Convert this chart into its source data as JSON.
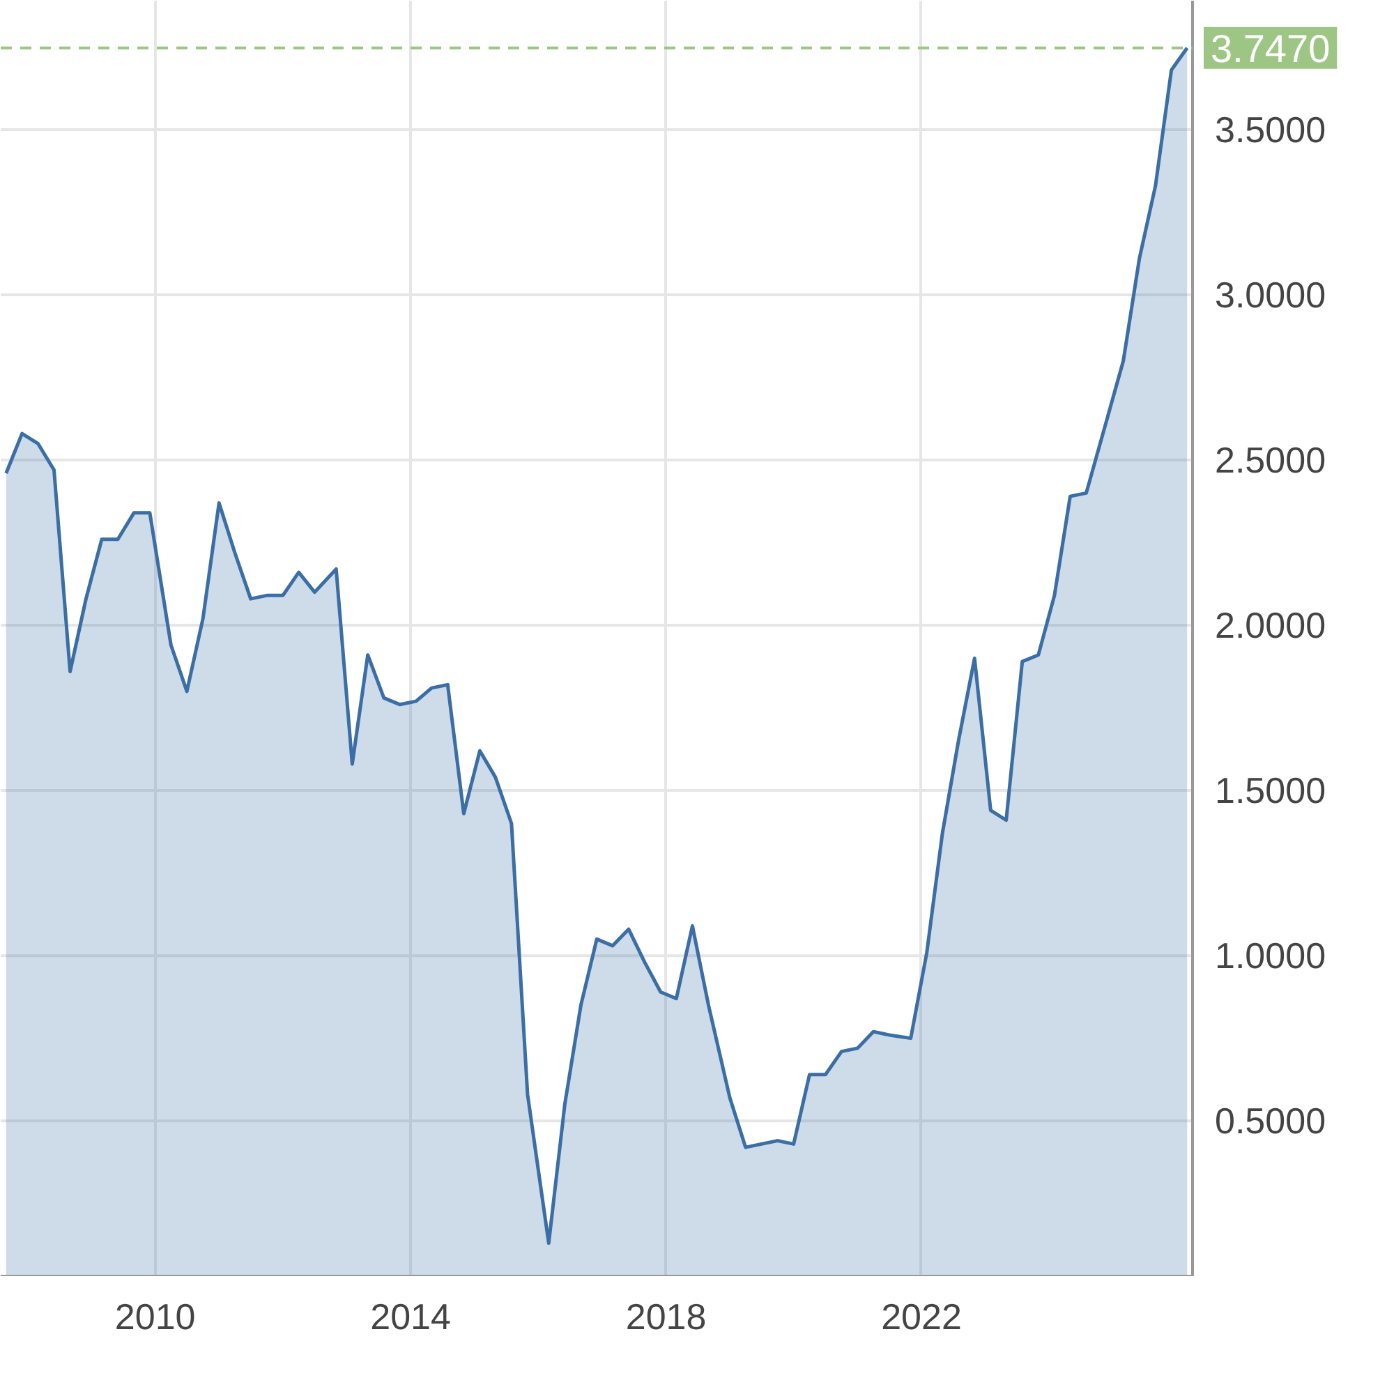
{
  "chart_data": {
    "type": "area",
    "grid": true,
    "xlim": [
      "2007-08",
      "2026-04"
    ],
    "ylim": [
      0.03,
      3.89
    ],
    "xticks": [
      "2010",
      "2014",
      "2018",
      "2022"
    ],
    "yticks": [
      {
        "value": 0.5,
        "label": "0.5000"
      },
      {
        "value": 1.0,
        "label": "1.0000"
      },
      {
        "value": 1.5,
        "label": "1.5000"
      },
      {
        "value": 2.0,
        "label": "2.0000"
      },
      {
        "value": 2.5,
        "label": "2.5000"
      },
      {
        "value": 3.0,
        "label": "3.0000"
      },
      {
        "value": 3.5,
        "label": "3.5000"
      }
    ],
    "ref_lines": [
      {
        "axis": "y",
        "value": 3.747,
        "label": "3.7470",
        "color": "#9dc584",
        "line_style": "dashed"
      }
    ],
    "x": [
      "2007-09",
      "2007-12",
      "2008-03",
      "2008-06",
      "2008-09",
      "2008-12",
      "2009-03",
      "2009-06",
      "2009-09",
      "2009-12",
      "2010-04",
      "2010-07",
      "2010-10",
      "2011-01",
      "2011-04",
      "2011-07",
      "2011-10",
      "2012-01",
      "2012-04",
      "2012-07",
      "2012-11",
      "2013-02",
      "2013-05",
      "2013-08",
      "2013-11",
      "2014-02",
      "2014-05",
      "2014-08",
      "2014-11",
      "2015-02",
      "2015-05",
      "2015-08",
      "2015-11",
      "2016-03",
      "2016-06",
      "2016-09",
      "2016-12",
      "2017-03",
      "2017-06",
      "2017-09",
      "2017-12",
      "2018-03",
      "2018-06",
      "2018-09",
      "2019-01",
      "2019-04",
      "2019-07",
      "2019-10",
      "2020-01",
      "2020-04",
      "2020-07",
      "2020-10",
      "2021-01",
      "2021-04",
      "2021-07",
      "2021-11",
      "2022-02",
      "2022-05",
      "2022-08",
      "2022-11",
      "2023-02",
      "2023-05",
      "2023-08",
      "2023-11",
      "2024-02",
      "2024-05",
      "2024-08",
      "2024-12",
      "2025-03",
      "2025-06",
      "2025-09",
      "2025-12",
      "2026-03"
    ],
    "series": [
      {
        "color": "#3a6ea5",
        "values": [
          2.46,
          2.58,
          2.55,
          2.47,
          1.86,
          2.08,
          2.26,
          2.26,
          2.34,
          2.34,
          1.94,
          1.8,
          2.02,
          2.37,
          2.22,
          2.08,
          2.09,
          2.09,
          2.16,
          2.1,
          2.17,
          1.58,
          1.91,
          1.78,
          1.76,
          1.77,
          1.81,
          1.82,
          1.43,
          1.62,
          1.54,
          1.4,
          0.58,
          0.13,
          0.55,
          0.85,
          1.05,
          1.03,
          1.08,
          0.98,
          0.89,
          0.87,
          1.09,
          0.85,
          0.57,
          0.42,
          0.43,
          0.44,
          0.43,
          0.64,
          0.64,
          0.71,
          0.72,
          0.77,
          0.76,
          0.75,
          1.01,
          1.37,
          1.65,
          1.9,
          1.44,
          1.41,
          1.89,
          1.91,
          2.09,
          2.39,
          2.4,
          2.63,
          2.8,
          3.11,
          3.33,
          3.68,
          3.747
        ]
      }
    ]
  }
}
